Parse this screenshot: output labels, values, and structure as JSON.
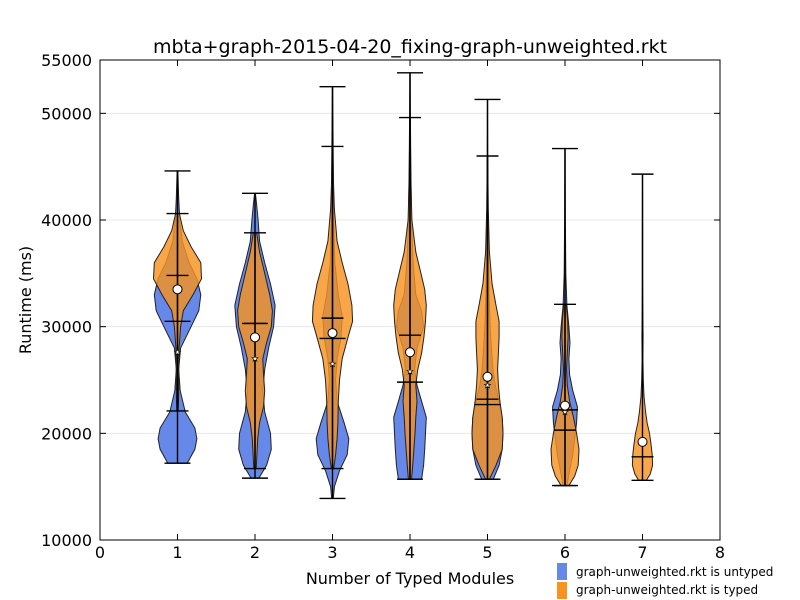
{
  "chart_data": {
    "type": "violin",
    "title": "mbta+graph-2015-04-20_fixing-graph-unweighted.rkt",
    "xlabel": "Number of Typed Modules",
    "ylabel": "Runtime (ms)",
    "xlim": [
      0,
      8
    ],
    "ylim": [
      10000,
      55000
    ],
    "xticks": [
      0,
      1,
      2,
      3,
      4,
      5,
      6,
      7,
      8
    ],
    "yticks": [
      10000,
      20000,
      30000,
      40000,
      50000
    ],
    "grid": "horizontal",
    "legend": {
      "placement": "bottom-right, outside plot",
      "entries": [
        {
          "label": "graph-unweighted.rkt is untyped",
          "color": "#6688e8"
        },
        {
          "label": "graph-unweighted.rkt is typed",
          "color": "#f7931e"
        }
      ]
    },
    "series": [
      {
        "name": "graph-unweighted.rkt is untyped",
        "color": "#6688e8",
        "violins": [
          {
            "x": 1,
            "min": 17200,
            "max": 44600,
            "mean": 27600,
            "median": 30500,
            "profile": [
              [
                17200,
                0.25
              ],
              [
                18500,
                0.45
              ],
              [
                19500,
                0.5
              ],
              [
                20500,
                0.45
              ],
              [
                22000,
                0.2
              ],
              [
                24000,
                0.07
              ],
              [
                26000,
                0.03
              ],
              [
                28000,
                0.08
              ],
              [
                30000,
                0.35
              ],
              [
                31500,
                0.55
              ],
              [
                33000,
                0.6
              ],
              [
                34500,
                0.5
              ],
              [
                36000,
                0.3
              ],
              [
                38000,
                0.12
              ],
              [
                40000,
                0.06
              ],
              [
                42000,
                0.03
              ],
              [
                44600,
                0.01
              ]
            ]
          },
          {
            "x": 2,
            "min": 15800,
            "max": 42500,
            "mean": 27000,
            "median": 30300,
            "profile": [
              [
                15800,
                0.1
              ],
              [
                17000,
                0.3
              ],
              [
                18500,
                0.42
              ],
              [
                20000,
                0.4
              ],
              [
                22000,
                0.25
              ],
              [
                24000,
                0.2
              ],
              [
                26000,
                0.25
              ],
              [
                28000,
                0.35
              ],
              [
                30000,
                0.48
              ],
              [
                32000,
                0.52
              ],
              [
                34000,
                0.4
              ],
              [
                36000,
                0.25
              ],
              [
                38000,
                0.12
              ],
              [
                40000,
                0.08
              ],
              [
                41500,
                0.04
              ],
              [
                42500,
                0.01
              ]
            ]
          },
          {
            "x": 3,
            "min": 13900,
            "max": 52500,
            "mean": 26500,
            "median": 28900,
            "profile": [
              [
                13900,
                0.02
              ],
              [
                15000,
                0.05
              ],
              [
                16500,
                0.18
              ],
              [
                18000,
                0.38
              ],
              [
                19500,
                0.42
              ],
              [
                21000,
                0.3
              ],
              [
                23000,
                0.12
              ],
              [
                25000,
                0.08
              ],
              [
                27000,
                0.12
              ],
              [
                29000,
                0.22
              ],
              [
                31000,
                0.25
              ],
              [
                33000,
                0.15
              ],
              [
                36000,
                0.06
              ],
              [
                40000,
                0.03
              ],
              [
                45000,
                0.02
              ],
              [
                50000,
                0.01
              ],
              [
                52500,
                0.005
              ]
            ]
          },
          {
            "x": 4,
            "min": 15700,
            "max": 53800,
            "mean": 25800,
            "median": 24800,
            "profile": [
              [
                15700,
                0.3
              ],
              [
                17000,
                0.35
              ],
              [
                18500,
                0.38
              ],
              [
                20000,
                0.4
              ],
              [
                21500,
                0.42
              ],
              [
                23000,
                0.3
              ],
              [
                24500,
                0.18
              ],
              [
                26000,
                0.12
              ],
              [
                28000,
                0.18
              ],
              [
                30000,
                0.35
              ],
              [
                31500,
                0.3
              ],
              [
                33000,
                0.15
              ],
              [
                36000,
                0.08
              ],
              [
                40000,
                0.04
              ],
              [
                45000,
                0.02
              ],
              [
                50000,
                0.01
              ],
              [
                53800,
                0.005
              ]
            ]
          },
          {
            "x": 5,
            "min": 15700,
            "max": 51300,
            "mean": 24500,
            "median": 22700,
            "profile": [
              [
                15700,
                0.15
              ],
              [
                17000,
                0.3
              ],
              [
                18500,
                0.38
              ],
              [
                20000,
                0.4
              ],
              [
                21500,
                0.38
              ],
              [
                23000,
                0.3
              ],
              [
                24500,
                0.2
              ],
              [
                26000,
                0.14
              ],
              [
                28000,
                0.1
              ],
              [
                30000,
                0.07
              ],
              [
                33000,
                0.04
              ],
              [
                37000,
                0.02
              ],
              [
                42000,
                0.01
              ],
              [
                47000,
                0.005
              ],
              [
                51300,
                0.003
              ]
            ]
          },
          {
            "x": 6,
            "min": 15100,
            "max": 46700,
            "mean": 22000,
            "median": 22200,
            "profile": [
              [
                15100,
                0.05
              ],
              [
                16500,
                0.12
              ],
              [
                18000,
                0.2
              ],
              [
                19500,
                0.25
              ],
              [
                21000,
                0.3
              ],
              [
                22500,
                0.32
              ],
              [
                24000,
                0.2
              ],
              [
                25500,
                0.12
              ],
              [
                27000,
                0.1
              ],
              [
                28500,
                0.13
              ],
              [
                30000,
                0.1
              ],
              [
                32000,
                0.05
              ],
              [
                35000,
                0.02
              ],
              [
                40000,
                0.01
              ],
              [
                46700,
                0.004
              ]
            ]
          }
        ]
      },
      {
        "name": "graph-unweighted.rkt is typed",
        "color": "#f7931e",
        "violins": [
          {
            "x": 1,
            "min": 22100,
            "max": 40600,
            "mean": 33500,
            "median": 34800,
            "profile": [
              [
                22100,
                0.02
              ],
              [
                24000,
                0.03
              ],
              [
                26000,
                0.03
              ],
              [
                28000,
                0.04
              ],
              [
                30000,
                0.08
              ],
              [
                31500,
                0.15
              ],
              [
                33000,
                0.4
              ],
              [
                34500,
                0.62
              ],
              [
                36000,
                0.6
              ],
              [
                37500,
                0.35
              ],
              [
                39000,
                0.15
              ],
              [
                40600,
                0.05
              ]
            ]
          },
          {
            "x": 2,
            "min": 16700,
            "max": 38800,
            "mean": 29000,
            "median": 30300,
            "profile": [
              [
                16700,
                0.03
              ],
              [
                18000,
                0.05
              ],
              [
                19500,
                0.07
              ],
              [
                21000,
                0.12
              ],
              [
                22500,
                0.22
              ],
              [
                24000,
                0.25
              ],
              [
                25500,
                0.22
              ],
              [
                27000,
                0.2
              ],
              [
                28500,
                0.3
              ],
              [
                30000,
                0.42
              ],
              [
                31500,
                0.45
              ],
              [
                33000,
                0.38
              ],
              [
                35000,
                0.25
              ],
              [
                37000,
                0.12
              ],
              [
                38800,
                0.04
              ]
            ]
          },
          {
            "x": 3,
            "min": 16700,
            "max": 46900,
            "mean": 29400,
            "median": 30800,
            "profile": [
              [
                16700,
                0.03
              ],
              [
                18000,
                0.08
              ],
              [
                19500,
                0.12
              ],
              [
                21000,
                0.14
              ],
              [
                23000,
                0.15
              ],
              [
                25000,
                0.18
              ],
              [
                27000,
                0.25
              ],
              [
                29000,
                0.4
              ],
              [
                30500,
                0.52
              ],
              [
                32000,
                0.5
              ],
              [
                34000,
                0.4
              ],
              [
                36000,
                0.25
              ],
              [
                38000,
                0.12
              ],
              [
                41000,
                0.05
              ],
              [
                44000,
                0.02
              ],
              [
                46900,
                0.008
              ]
            ]
          },
          {
            "x": 4,
            "min": 15700,
            "max": 49600,
            "mean": 27600,
            "median": 29200,
            "profile": [
              [
                15700,
                0.04
              ],
              [
                17000,
                0.07
              ],
              [
                18500,
                0.1
              ],
              [
                20000,
                0.13
              ],
              [
                21500,
                0.15
              ],
              [
                23000,
                0.18
              ],
              [
                24500,
                0.15
              ],
              [
                26000,
                0.2
              ],
              [
                27500,
                0.3
              ],
              [
                29000,
                0.36
              ],
              [
                30500,
                0.4
              ],
              [
                32000,
                0.42
              ],
              [
                33500,
                0.38
              ],
              [
                35000,
                0.28
              ],
              [
                37000,
                0.15
              ],
              [
                40000,
                0.05
              ],
              [
                44000,
                0.02
              ],
              [
                49600,
                0.005
              ]
            ]
          },
          {
            "x": 5,
            "min": 15700,
            "max": 46000,
            "mean": 25300,
            "median": 23200,
            "profile": [
              [
                15700,
                0.05
              ],
              [
                17000,
                0.22
              ],
              [
                18500,
                0.38
              ],
              [
                20000,
                0.4
              ],
              [
                21500,
                0.38
              ],
              [
                23000,
                0.32
              ],
              [
                24500,
                0.28
              ],
              [
                26000,
                0.26
              ],
              [
                27500,
                0.28
              ],
              [
                29000,
                0.3
              ],
              [
                30500,
                0.3
              ],
              [
                32000,
                0.22
              ],
              [
                34000,
                0.12
              ],
              [
                37000,
                0.05
              ],
              [
                41000,
                0.02
              ],
              [
                46000,
                0.005
              ]
            ]
          },
          {
            "x": 6,
            "min": 15100,
            "max": 32100,
            "mean": 22600,
            "median": 20300,
            "profile": [
              [
                15100,
                0.1
              ],
              [
                16000,
                0.25
              ],
              [
                17000,
                0.34
              ],
              [
                18500,
                0.36
              ],
              [
                20000,
                0.3
              ],
              [
                21500,
                0.22
              ],
              [
                23000,
                0.12
              ],
              [
                24500,
                0.06
              ],
              [
                26000,
                0.04
              ],
              [
                27500,
                0.06
              ],
              [
                29000,
                0.08
              ],
              [
                30500,
                0.07
              ],
              [
                32100,
                0.03
              ]
            ]
          },
          {
            "x": 7,
            "min": 15600,
            "max": 44300,
            "mean": 19200,
            "median": 17800,
            "profile": [
              [
                15600,
                0.1
              ],
              [
                16200,
                0.2
              ],
              [
                17000,
                0.26
              ],
              [
                18000,
                0.25
              ],
              [
                19000,
                0.22
              ],
              [
                20000,
                0.18
              ],
              [
                21000,
                0.12
              ],
              [
                22000,
                0.08
              ],
              [
                23500,
                0.04
              ],
              [
                25000,
                0.02
              ],
              [
                27000,
                0.01
              ],
              [
                29000,
                0.015
              ],
              [
                31000,
                0.01
              ],
              [
                34000,
                0.006
              ],
              [
                38000,
                0.004
              ],
              [
                44300,
                0.002
              ]
            ]
          }
        ]
      }
    ]
  }
}
